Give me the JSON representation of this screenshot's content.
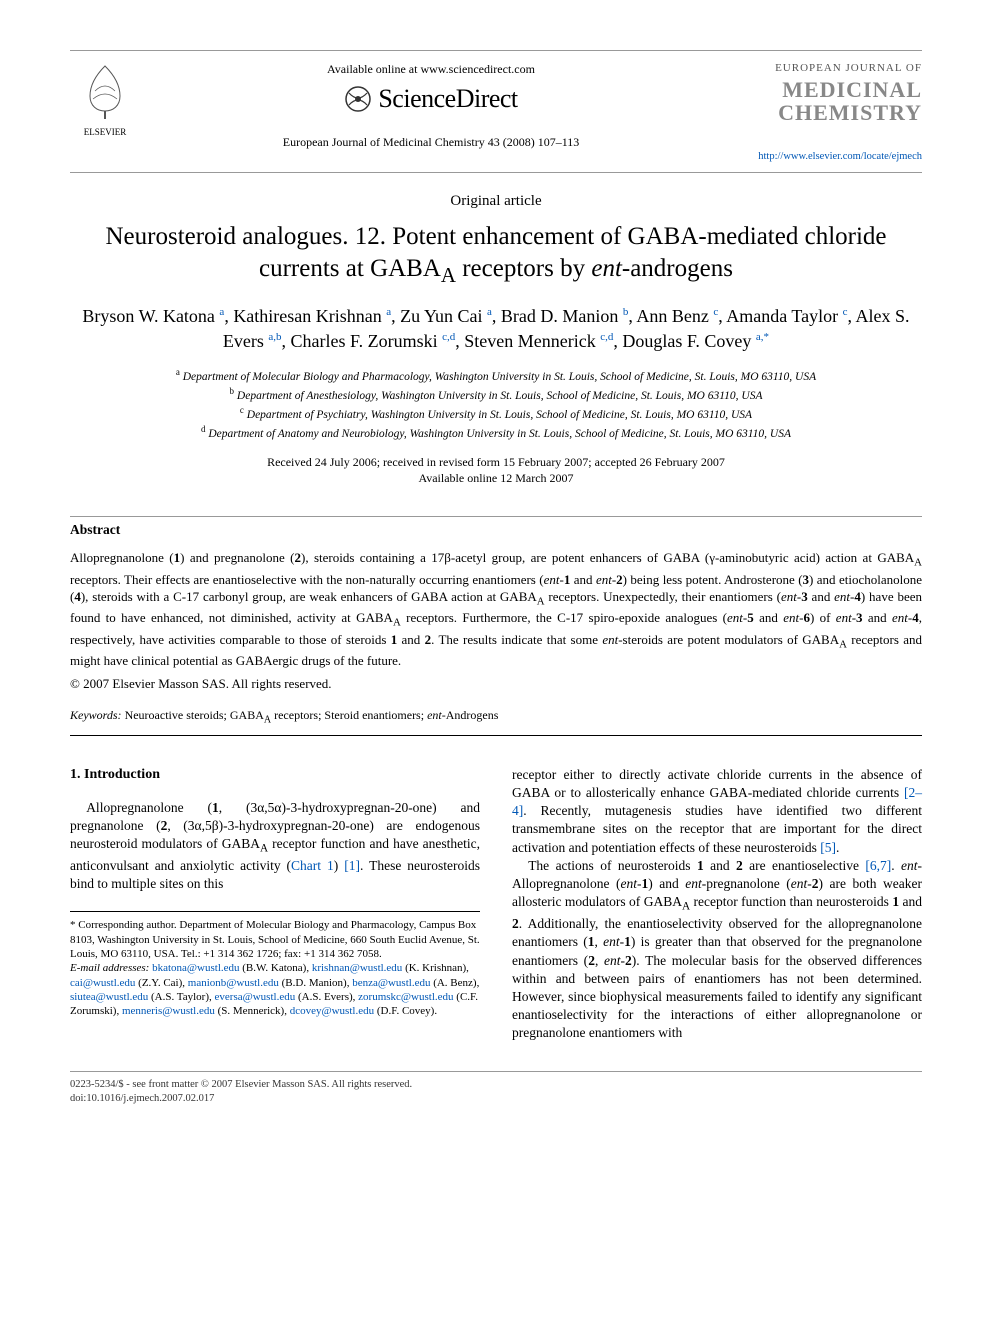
{
  "header": {
    "available_text": "Available online at www.sciencedirect.com",
    "sd_brand": "ScienceDirect",
    "journal_citation": "European Journal of Medicinal Chemistry 43 (2008) 107–113",
    "elsevier_label": "ELSEVIER",
    "journal_logo_top": "EUROPEAN JOURNAL OF",
    "journal_logo_line1": "MEDICINAL",
    "journal_logo_line2": "CHEMISTRY",
    "locate_url": "http://www.elsevier.com/locate/ejmech"
  },
  "article": {
    "type": "Original article",
    "title_html": "Neurosteroid analogues. 12. Potent enhancement of GABA-mediated chloride currents at GABA<sub>A</sub> receptors by <span class='ital'>ent</span>-androgens",
    "authors_html": "Bryson W. Katona <sup class='author-link'>a</sup>, Kathiresan Krishnan <sup class='author-link'>a</sup>, Zu Yun Cai <sup class='author-link'>a</sup>, Brad D. Manion <sup class='author-link'>b</sup>, Ann Benz <sup class='author-link'>c</sup>, Amanda Taylor <sup class='author-link'>c</sup>, Alex S. Evers <sup class='author-link'>a,b</sup>, Charles F. Zorumski <sup class='author-link'>c,d</sup>, Steven Mennerick <sup class='author-link'>c,d</sup>, Douglas F. Covey <sup class='author-link'>a,*</sup>",
    "affiliations": [
      {
        "sup": "a",
        "text": "Department of Molecular Biology and Pharmacology, Washington University in St. Louis, School of Medicine, St. Louis, MO 63110, USA"
      },
      {
        "sup": "b",
        "text": "Department of Anesthesiology, Washington University in St. Louis, School of Medicine, St. Louis, MO 63110, USA"
      },
      {
        "sup": "c",
        "text": "Department of Psychiatry, Washington University in St. Louis, School of Medicine, St. Louis, MO 63110, USA"
      },
      {
        "sup": "d",
        "text": "Department of Anatomy and Neurobiology, Washington University in St. Louis, School of Medicine, St. Louis, MO 63110, USA"
      }
    ],
    "dates_line1": "Received 24 July 2006; received in revised form 15 February 2007; accepted 26 February 2007",
    "dates_line2": "Available online 12 March 2007"
  },
  "abstract": {
    "label": "Abstract",
    "text_html": "Allopregnanolone (<b>1</b>) and pregnanolone (<b>2</b>), steroids containing a 17β-acetyl group, are potent enhancers of GABA (γ-aminobutyric acid) action at GABA<sub>A</sub> receptors. Their effects are enantioselective with the non-naturally occurring enantiomers (<span class='ital'>ent</span>-<b>1</b> and <span class='ital'>ent</span>-<b>2</b>) being less potent. Androsterone (<b>3</b>) and etiocholanolone (<b>4</b>), steroids with a C-17 carbonyl group, are weak enhancers of GABA action at GABA<sub>A</sub> receptors. Unexpectedly, their enantiomers (<span class='ital'>ent</span>-<b>3</b> and <span class='ital'>ent</span>-<b>4</b>) have been found to have enhanced, not diminished, activity at GABA<sub>A</sub> receptors. Furthermore, the C-17 spiro-epoxide analogues (<span class='ital'>ent</span>-<b>5</b> and <span class='ital'>ent</span>-<b>6</b>) of <span class='ital'>ent</span>-<b>3</b> and <span class='ital'>ent</span>-<b>4</b>, respectively, have activities comparable to those of steroids <b>1</b> and <b>2</b>. The results indicate that some <span class='ital'>ent</span>-steroids are potent modulators of GABA<sub>A</sub> receptors and might have clinical potential as GABAergic drugs of the future.",
    "copyright": "© 2007 Elsevier Masson SAS. All rights reserved.",
    "keywords_label": "Keywords:",
    "keywords_html": "Neuroactive steroids; GABA<sub>A</sub> receptors; Steroid enantiomers; <span class='ital'>ent</span>-Androgens"
  },
  "body": {
    "intro_heading": "1. Introduction",
    "left_para_html": "Allopregnanolone (<b>1</b>, (3α,5α)-3-hydroxypregnan-20-one) and pregnanolone (<b>2</b>, (3α,5β)-3-hydroxypregnan-20-one) are endogenous neurosteroid modulators of GABA<sub>A</sub> receptor function and have anesthetic, anticonvulsant and anxiolytic activity (<span class='ref-link'>Chart 1</span>) <span class='ref-link'>[1]</span>. These neurosteroids bind to multiple sites on this",
    "right_para1_html": "receptor either to directly activate chloride currents in the absence of GABA or to allosterically enhance GABA-mediated chloride currents <span class='ref-link'>[2–4]</span>. Recently, mutagenesis studies have identified two different transmembrane sites on the receptor that are important for the direct activation and potentiation effects of these neurosteroids <span class='ref-link'>[5]</span>.",
    "right_para2_html": "The actions of neurosteroids <b>1</b> and <b>2</b> are enantioselective <span class='ref-link'>[6,7]</span>. <span class='ital'>ent</span>-Allopregnanolone (<span class='ital'>ent</span>-<b>1</b>) and <span class='ital'>ent</span>-pregnanolone (<span class='ital'>ent</span>-<b>2</b>) are both weaker allosteric modulators of GABA<sub>A</sub> receptor function than neurosteroids <b>1</b> and <b>2</b>. Additionally, the enantioselectivity observed for the allopregnanolone enantiomers (<b>1</b>, <span class='ital'>ent</span>-<b>1</b>) is greater than that observed for the pregnanolone enantiomers (<b>2</b>, <span class='ital'>ent</span>-<b>2</b>). The molecular basis for the observed differences within and between pairs of enantiomers has not been determined. However, since biophysical measurements failed to identify any significant enantioselectivity for the interactions of either allopregnanolone or pregnanolone enantiomers with"
  },
  "footnotes": {
    "corresponding_html": "* Corresponding author. Department of Molecular Biology and Pharmacology, Campus Box 8103, Washington University in St. Louis, School of Medicine, 660 South Euclid Avenue, St. Louis, MO 63110, USA. Tel.: +1 314 362 1726; fax: +1 314 362 7058.",
    "emails_label": "E-mail addresses:",
    "emails_html": "<a href='#'>bkatona@wustl.edu</a> (B.W. Katona), <a href='#'>krishnan@wustl.edu</a> (K. Krishnan), <a href='#'>cai@wustl.edu</a> (Z.Y. Cai), <a href='#'>manionb@wustl.edu</a> (B.D. Manion), <a href='#'>benza@wustl.edu</a> (A. Benz), <a href='#'>siutea@wustl.edu</a> (A.S. Taylor), <a href='#'>eversa@wustl.edu</a> (A.S. Evers), <a href='#'>zorumskc@wustl.edu</a> (C.F. Zorumski), <a href='#'>menneris@wustl.edu</a> (S. Mennerick), <a href='#'>dcovey@wustl.edu</a> (D.F. Covey)."
  },
  "footer": {
    "line1": "0223-5234/$ - see front matter © 2007 Elsevier Masson SAS. All rights reserved.",
    "line2": "doi:10.1016/j.ejmech.2007.02.017"
  },
  "colors": {
    "link": "#0057b5",
    "logo_gray": "#888888",
    "rule": "#999999",
    "text": "#000000",
    "bg": "#ffffff"
  }
}
